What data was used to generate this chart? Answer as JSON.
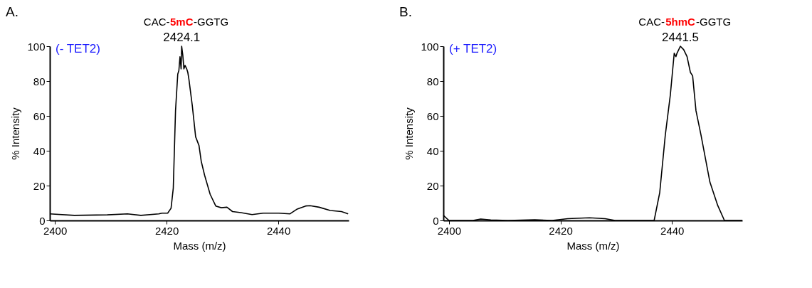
{
  "chart_data": [
    {
      "type": "line",
      "title": "CAC-5mC-GGTG",
      "xlabel": "Mass (m/z)",
      "ylabel": "% Intensity",
      "grid": false,
      "line_style": "solid",
      "marker": "none",
      "xlim": [
        2399.1,
        2452.6
      ],
      "xticks": [
        2400,
        2420,
        2440
      ],
      "ylim": [
        0,
        100
      ],
      "yticks": [
        0,
        20,
        40,
        60,
        80,
        100
      ],
      "annotations": [
        "A.",
        "(- TET2)",
        {
          "text": "2424.1",
          "x": 2422.7,
          "y": 100
        }
      ],
      "series": [
        {
          "color": "#000000",
          "x": [
            2399.1,
            2403.5,
            2409.4,
            2413,
            2415.4,
            2418.6,
            2419.2,
            2420.2,
            2420.8,
            2421.2,
            2421.6,
            2422.0,
            2422.2,
            2422.4,
            2422.6,
            2422.7,
            2422.9,
            2423.1,
            2423.3,
            2423.6,
            2423.8,
            2424.0,
            2424.6,
            2425.2,
            2425.8,
            2426.2,
            2426.8,
            2427.8,
            2428.8,
            2429.8,
            2430.8,
            2431.8,
            2433.3,
            2435.3,
            2437.3,
            2440.1,
            2442.1,
            2443.3,
            2444.9,
            2445.7,
            2447.3,
            2449.3,
            2451.3,
            2452.5
          ],
          "values": [
            3.8,
            2.9,
            3.2,
            3.8,
            2.9,
            3.8,
            4.2,
            4.2,
            7,
            18.5,
            63,
            84,
            86,
            94,
            87,
            100,
            95,
            87,
            89,
            87,
            85,
            81,
            66,
            48,
            43,
            34,
            26,
            15,
            8.3,
            7.3,
            7.6,
            5.1,
            4.5,
            3.4,
            4.2,
            4.2,
            3.8,
            6.4,
            8.3,
            8.5,
            7.6,
            5.7,
            5.1,
            3.8
          ]
        }
      ]
    },
    {
      "type": "line",
      "title": "CAC-5hmC-GGTG",
      "xlabel": "Mass (m/z)",
      "ylabel": "% Intensity",
      "grid": false,
      "line_style": "solid",
      "marker": "none",
      "xlim": [
        2399.0,
        2452.6
      ],
      "xticks": [
        2400,
        2420,
        2440
      ],
      "ylim": [
        0,
        100
      ],
      "yticks": [
        0,
        20,
        40,
        60,
        80,
        100
      ],
      "annotations": [
        "B.",
        "(+ TET2)",
        {
          "text": "2441.5",
          "x": 2441.5,
          "y": 100
        }
      ],
      "series": [
        {
          "color": "#000000",
          "x": [
            2399.0,
            2400,
            2404.3,
            2405.7,
            2407.5,
            2410.6,
            2415.4,
            2418.5,
            2421.3,
            2425.2,
            2428,
            2429.8,
            2436.8,
            2437.8,
            2438.8,
            2439.7,
            2440.4,
            2440.7,
            2440.9,
            2441.5,
            2442.1,
            2442.7,
            2443.3,
            2443.7,
            2444.3,
            2445.2,
            2446.8,
            2448.2,
            2449.4,
            2452.6
          ],
          "values": [
            2.9,
            0,
            0,
            0.8,
            0.3,
            0,
            0.4,
            0,
            1,
            1.5,
            1,
            0,
            0,
            16,
            49,
            72,
            96,
            94,
            96,
            100,
            98,
            94,
            85,
            83,
            63,
            49,
            22,
            8.6,
            0,
            0
          ]
        }
      ]
    }
  ]
}
